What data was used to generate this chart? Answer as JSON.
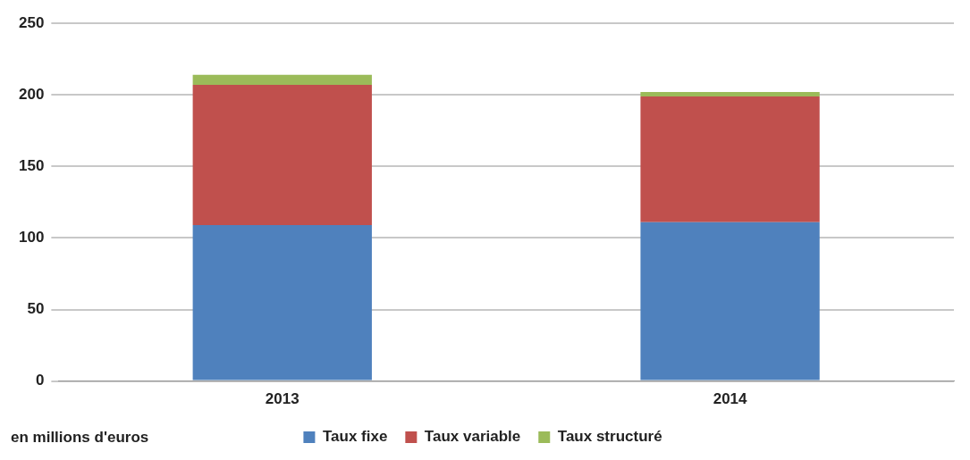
{
  "chart_data": {
    "type": "bar",
    "stacked": true,
    "categories": [
      "2013",
      "2014"
    ],
    "series": [
      {
        "name": "Taux fixe",
        "color": "#4f81bd",
        "values": [
          109,
          111
        ]
      },
      {
        "name": "Taux variable",
        "color": "#c0504d",
        "values": [
          98,
          88
        ]
      },
      {
        "name": "Taux structuré",
        "color": "#9bbb59",
        "values": [
          7,
          3
        ]
      }
    ],
    "ylim": [
      0,
      250
    ],
    "yticks": [
      0,
      50,
      100,
      150,
      200,
      250
    ],
    "grid": "y",
    "legend": "bottom",
    "annotations": [
      "en millions d'euros"
    ]
  }
}
